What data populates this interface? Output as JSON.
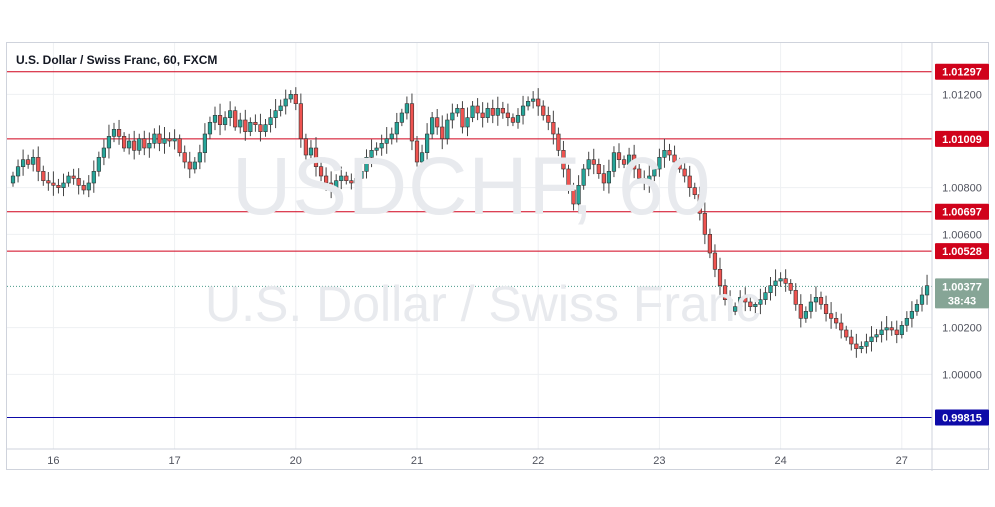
{
  "legend": {
    "symbol_text": "U.S. Dollar / Swiss Franc, 60, FXCM"
  },
  "watermark": {
    "symbol": "USDCHF, 60",
    "description": "U.S. Dollar / Swiss Franc"
  },
  "colors": {
    "up": "#26a69a",
    "down": "#ef5350",
    "wick": "#444444",
    "red_line": "#d0021b",
    "blue_line": "#0d0aa8",
    "price_tag": "#86a596",
    "grid": "#eef0f3"
  },
  "chart_data": {
    "type": "candlestick",
    "title": "U.S. Dollar / Swiss Franc, 60, FXCM",
    "ylim": [
      0.9968,
      1.0142
    ],
    "grid": true,
    "x_ticks": [
      {
        "label": "16",
        "index": 8
      },
      {
        "label": "17",
        "index": 32
      },
      {
        "label": "20",
        "index": 56
      },
      {
        "label": "21",
        "index": 80
      },
      {
        "label": "22",
        "index": 104
      },
      {
        "label": "23",
        "index": 128
      },
      {
        "label": "24",
        "index": 152
      },
      {
        "label": "27",
        "index": 176
      }
    ],
    "y_ticks": [
      {
        "value": 1.012,
        "label": "1.01200"
      },
      {
        "value": 1.008,
        "label": "1.00800"
      },
      {
        "value": 1.006,
        "label": "1.00600"
      },
      {
        "value": 1.002,
        "label": "1.00200"
      },
      {
        "value": 1.0,
        "label": "1.00000"
      }
    ],
    "levels": [
      {
        "value": 1.01297,
        "label": "1.01297",
        "color": "red"
      },
      {
        "value": 1.01009,
        "label": "1.01009",
        "color": "red"
      },
      {
        "value": 1.00697,
        "label": "1.00697",
        "color": "red"
      },
      {
        "value": 1.00528,
        "label": "1.00528",
        "color": "red"
      },
      {
        "value": 0.99815,
        "label": "0.99815",
        "color": "blue"
      }
    ],
    "current": {
      "value": 1.00377,
      "label": "1.00377",
      "countdown": "38:43"
    },
    "closes": [
      1.0085,
      1.0089,
      1.0092,
      1.009,
      1.0093,
      1.0087,
      1.0083,
      1.0082,
      1.0081,
      1.008,
      1.0082,
      1.0085,
      1.0084,
      1.0081,
      1.0079,
      1.0082,
      1.0087,
      1.0093,
      1.0097,
      1.0102,
      1.0105,
      1.0102,
      1.0097,
      1.01,
      1.0096,
      1.0101,
      1.0097,
      1.0099,
      1.0103,
      1.0099,
      1.0101,
      1.01,
      1.0101,
      1.0095,
      1.0091,
      1.0088,
      1.0091,
      1.0095,
      1.0103,
      1.0108,
      1.0111,
      1.0107,
      1.011,
      1.0113,
      1.0106,
      1.0109,
      1.0104,
      1.0108,
      1.0107,
      1.0104,
      1.0107,
      1.011,
      1.0113,
      1.0115,
      1.0118,
      1.012,
      1.0116,
      1.0101,
      1.0094,
      1.0097,
      1.0089,
      1.0085,
      1.0082,
      1.008,
      1.0083,
      1.0085,
      1.0083,
      1.0082,
      1.0084,
      1.0087,
      1.0093,
      1.0096,
      1.0097,
      1.0099,
      1.0101,
      1.0103,
      1.0108,
      1.0112,
      1.0116,
      1.01,
      1.0091,
      1.0095,
      1.0103,
      1.011,
      1.0106,
      1.0101,
      1.0109,
      1.0112,
      1.0114,
      1.0106,
      1.011,
      1.0115,
      1.0112,
      1.011,
      1.0114,
      1.0111,
      1.0114,
      1.0112,
      1.011,
      1.0108,
      1.0111,
      1.0115,
      1.0117,
      1.0118,
      1.0115,
      1.0111,
      1.0108,
      1.0103,
      1.0096,
      1.0088,
      1.0079,
      1.0073,
      1.0081,
      1.0088,
      1.0092,
      1.009,
      1.0086,
      1.0082,
      1.0087,
      1.0095,
      1.0092,
      1.009,
      1.0094,
      1.0088,
      1.0084,
      1.0082,
      1.0085,
      1.0088,
      1.0093,
      1.0096,
      1.0094,
      1.0091,
      1.0088,
      1.0085,
      1.008,
      1.0077,
      1.0069,
      1.006,
      1.0052,
      1.0045,
      1.0038,
      1.0032,
      1.0027,
      1.0029,
      1.0033,
      1.0031,
      1.0029,
      1.003,
      1.0032,
      1.0035,
      1.0038,
      1.004,
      1.0041,
      1.0039,
      1.0036,
      1.003,
      1.0024,
      1.0027,
      1.0031,
      1.0033,
      1.003,
      1.0026,
      1.0024,
      1.0022,
      1.0019,
      1.0016,
      1.0013,
      1.0011,
      1.0012,
      1.0014,
      1.0016,
      1.0017,
      1.0019,
      1.002,
      1.0019,
      1.0017,
      1.0021,
      1.0024,
      1.0027,
      1.003,
      1.0034,
      1.0038
    ]
  }
}
